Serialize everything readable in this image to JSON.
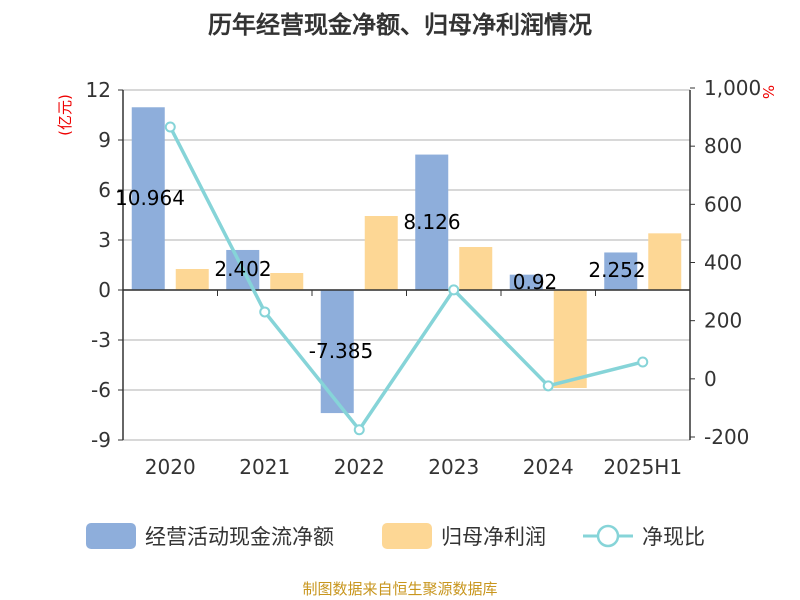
{
  "chart_data": {
    "type": "bar+line",
    "title": "历年经营现金净额、归母净利润情况",
    "left_axis": {
      "unit": "(亿元)",
      "ticks": [
        12,
        9,
        6,
        3,
        0,
        -3,
        -6,
        -9
      ],
      "range": [
        -9,
        12
      ]
    },
    "right_axis": {
      "unit": "%",
      "ticks": [
        "1,000",
        "800",
        "600",
        "400",
        "200",
        "0",
        "-200"
      ],
      "range": [
        -200,
        1000
      ]
    },
    "categories": [
      "2020",
      "2021",
      "2022",
      "2023",
      "2024",
      "2025H1"
    ],
    "series": [
      {
        "name": "经营活动现金流净额",
        "type": "bar",
        "axis": "left",
        "color": "#8eaedb",
        "values": [
          10.964,
          2.402,
          -7.385,
          8.126,
          0.92,
          2.252
        ],
        "labels": [
          "10.964",
          "2.402",
          "-7.385",
          "8.126",
          "0.92",
          "2.252"
        ]
      },
      {
        "name": "归母净利润",
        "type": "bar",
        "axis": "left",
        "color": "#fdd795",
        "values": [
          1.26,
          1.02,
          4.44,
          2.58,
          -5.88,
          3.4
        ]
      },
      {
        "name": "净现比",
        "type": "line",
        "axis": "right",
        "color": "#86d4d8",
        "values": [
          866,
          230,
          -175,
          306,
          -24,
          58
        ]
      }
    ],
    "grid": true,
    "legend": "bottom"
  },
  "source": "制图数据来自恒生聚源数据库"
}
